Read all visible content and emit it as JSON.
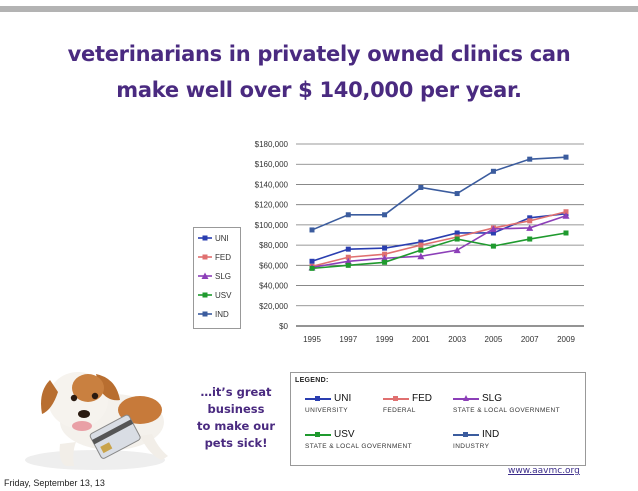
{
  "slide": {
    "title_line1": "veterinarians in privately owned clinics can",
    "title_line2": "make well over $ 140,000 per year.",
    "tagline_lines": [
      "…it’s great",
      "business",
      "to make our",
      "pets sick!"
    ],
    "website": "www.aavmc.org",
    "date": "Friday, September 13, 13"
  },
  "key_panel": {
    "heading": "LEGEND:",
    "items": [
      {
        "short": "UNI",
        "long": "UNIVERSITY",
        "color": "#2a3eb0",
        "marker": "square"
      },
      {
        "short": "FED",
        "long": "FEDERAL",
        "color": "#e07070",
        "marker": "square"
      },
      {
        "short": "SLG",
        "long": "STATE & LOCAL GOVERNMENT",
        "color": "#8c3fb8",
        "marker": "triangle"
      },
      {
        "short": "USV",
        "long": "STATE & LOCAL GOVERNMENT",
        "color": "#1f9a2e",
        "marker": "square"
      },
      {
        "short": "IND",
        "long": "INDUSTRY",
        "color": "#3b5c9e",
        "marker": "square"
      }
    ]
  },
  "chart_data": {
    "type": "line",
    "x": [
      1995,
      1997,
      1999,
      2001,
      2003,
      2005,
      2007,
      2009
    ],
    "x_tick_labels": [
      "1995",
      "1997",
      "1999",
      "2001",
      "2003",
      "2005",
      "2007",
      "2009"
    ],
    "ylim": [
      0,
      180000
    ],
    "y_ticks": [
      0,
      20000,
      40000,
      60000,
      80000,
      100000,
      120000,
      140000,
      160000,
      180000
    ],
    "y_tick_labels": [
      "$0",
      "$20,000",
      "$40,000",
      "$60,000",
      "$80,000",
      "$100,000",
      "$120,000",
      "$140,000",
      "$160,000",
      "$180,000"
    ],
    "grid": "horizontal",
    "legend_position": "left",
    "series": [
      {
        "name": "UNI",
        "color": "#2a3eb0",
        "marker": "square",
        "values": [
          64000,
          76000,
          77000,
          83000,
          92000,
          92000,
          107000,
          111000
        ]
      },
      {
        "name": "FED",
        "color": "#e07070",
        "marker": "square",
        "values": [
          59000,
          68000,
          71000,
          80000,
          88000,
          97000,
          104000,
          113000
        ]
      },
      {
        "name": "SLG",
        "color": "#8c3fb8",
        "marker": "triangle",
        "values": [
          58000,
          64000,
          67000,
          69000,
          75000,
          96000,
          97000,
          109000
        ]
      },
      {
        "name": "USV",
        "color": "#1f9a2e",
        "marker": "square",
        "values": [
          57000,
          60000,
          63000,
          75000,
          86000,
          79000,
          86000,
          92000
        ]
      },
      {
        "name": "IND",
        "color": "#3b5c9e",
        "marker": "square",
        "values": [
          95000,
          110000,
          110000,
          137000,
          131000,
          153000,
          165000,
          167000
        ]
      }
    ]
  }
}
